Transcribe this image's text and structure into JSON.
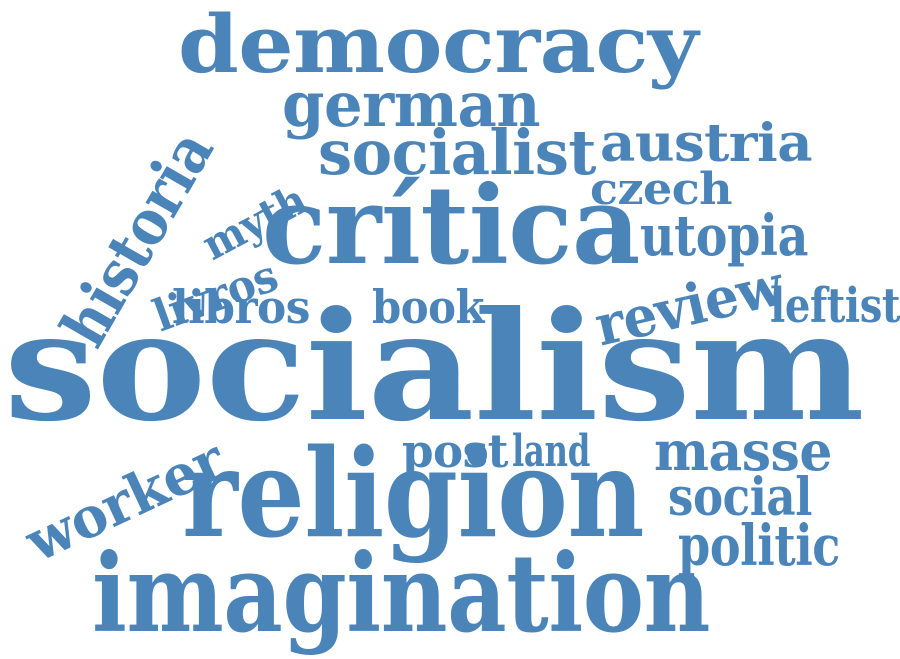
{
  "cloud": {
    "color": "#4a84b8",
    "words": [
      "democracy",
      "german",
      "socialist",
      "austria",
      "czech",
      "historia",
      "myth",
      "crítica",
      "utopia",
      "livros",
      "libros",
      "book",
      "review",
      "leftist",
      "socialism",
      "worker",
      "post",
      "land",
      "masse",
      "religion",
      "social",
      "politic",
      "imagination"
    ]
  }
}
